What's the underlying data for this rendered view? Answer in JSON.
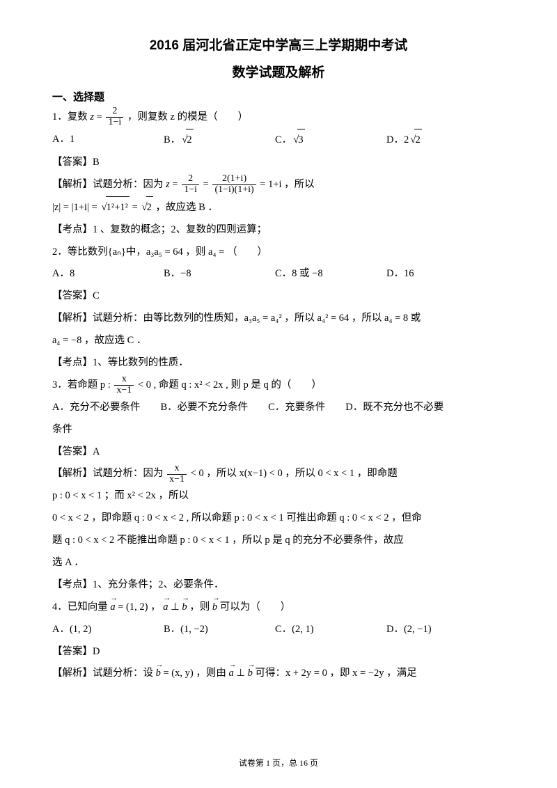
{
  "title1": "2016 届河北省正定中学高三上学期期中考试",
  "title2": "数学试题及解析",
  "section_header": "一、选择题",
  "q1": {
    "stem_pre": "1．复数",
    "stem_post": " ，则复数 z 的模是（　　）",
    "frac_num": "2",
    "frac_den": "1−i",
    "optA": "A．1",
    "optB": "B．",
    "optB_rad": "2",
    "optC": "C．",
    "optC_rad": "3",
    "optD": "D．2",
    "optD_rad": "2",
    "answer": "【答案】B",
    "analysis_pre": "【解析】试题分析：因为",
    "frac2_num": "2",
    "frac2_den": "1−i",
    "frac3_num": "2(1+i)",
    "frac3_den": "(1−i)(1+i)",
    "analysis_post": " = 1+i ，所以",
    "mod_line_pre": "|z| = |1+i| = ",
    "mod_rad": "1²+1²",
    "mod_eq": " = ",
    "mod_rad2": "2",
    "mod_post": " ，故应选 B ．",
    "kaodian": "【考点】1 、复数的概念；2、复数的四则运算；"
  },
  "q2": {
    "stem": "2．等比数列{aₙ}中，a₃a₅ = 64 ，则 a₄ = （　　）",
    "optA": "A．8",
    "optB": "B．−8",
    "optC": "C．8 或 −8",
    "optD": "D．16",
    "answer": "【答案】C",
    "analysis": "【解析】试题分析：由等比数列的性质知，a₃a₅ = a₄² ，所以 a₄² = 64 ，所以 a₄ = 8 或",
    "analysis2": "a₄ = −8 ，故应选 C ．",
    "kaodian": "【考点】1、等比数列的性质．"
  },
  "q3": {
    "stem_pre": "3．若命题 p : ",
    "frac_num": "x",
    "frac_den": "x−1",
    "stem_post": " < 0 , 命题 q : x² < 2x , 则 p 是 q 的（　　）",
    "options": "A．充分不必要条件　　B．必要不充分条件　　C．充要条件　　D．既不充分也不必要",
    "options2": "条件",
    "answer": "【答案】A",
    "analysis_pre": "【解析】试题分析：因为",
    "frac2_num": "x",
    "frac2_den": "x−1",
    "analysis_post": " < 0 ，所以 x(x−1) < 0 ，所以 0 < x < 1 ，即命题",
    "line2": "p : 0 < x < 1 ；而 x² < 2x ，所以",
    "line3": "0 < x < 2 ，即命题 q : 0 < x < 2 , 所以命题 p : 0 < x < 1 可推出命题 q : 0 < x < 2 ，但命",
    "line4": "题 q : 0 < x < 2 不能推出命题 p : 0 < x < 1 ，所以 p 是 q 的充分不必要条件，故应",
    "line5": "选 A ．",
    "kaodian": "【考点】1、充分条件；2、必要条件．"
  },
  "q4": {
    "stem_pre": "4．已知向量 ",
    "stem_a": "a",
    "stem_eq": " = (1, 2) ，",
    "stem_a2": "a",
    "stem_perp": " ⊥ ",
    "stem_b": "b",
    "stem_post": " ，则 ",
    "stem_b2": "b",
    "stem_post2": " 可以为（　　）",
    "optA": "A．(1, 2)",
    "optB": "B．(1, −2)",
    "optC": "C．(2, 1)",
    "optD": "D．(2, −1)",
    "answer": "【答案】D",
    "analysis_pre": "【解析】试题分析：设",
    "analysis_b": "b",
    "analysis_eq": " = (x, y) ，则由 ",
    "analysis_a": "a",
    "analysis_perp": " ⊥ ",
    "analysis_b2": "b",
    "analysis_post": " 可得：x + 2y = 0 ，即 x = −2y ，满足"
  },
  "footer": "试卷第 1 页，总 16 页"
}
